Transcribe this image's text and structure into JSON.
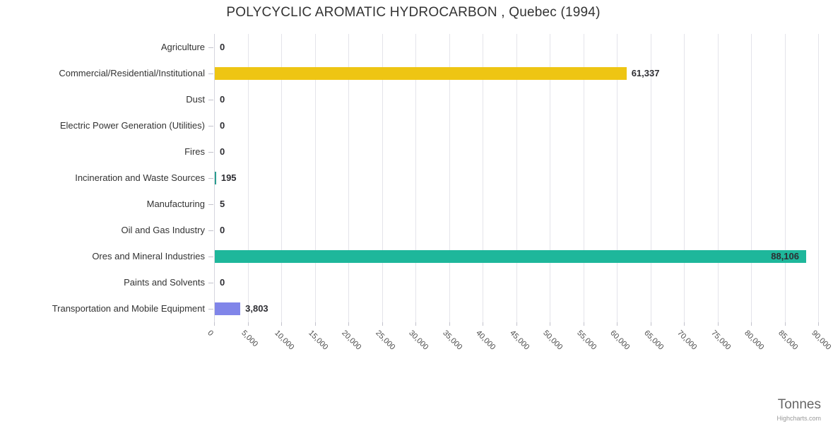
{
  "chart_data": {
    "type": "bar",
    "orientation": "horizontal",
    "title": "POLYCYCLIC AROMATIC HYDROCARBON , Quebec (1994)",
    "xlabel": "Tonnes",
    "credit": "Highcharts.com",
    "xlim": [
      0,
      90000
    ],
    "grid": true,
    "categories": [
      "Agriculture",
      "Commercial/Residential/Institutional",
      "Dust",
      "Electric Power Generation (Utilities)",
      "Fires",
      "Incineration and Waste Sources",
      "Manufacturing",
      "Oil and Gas Industry",
      "Ores and Mineral Industries",
      "Paints and Solvents",
      "Transportation and Mobile Equipment"
    ],
    "values": [
      0,
      61337,
      0,
      0,
      0,
      195,
      5,
      0,
      88106,
      0,
      3803
    ],
    "value_labels": [
      "0",
      "61,337",
      "0",
      "0",
      "0",
      "195",
      "5",
      "0",
      "88,106",
      "0",
      "3,803"
    ],
    "bar_colors": [
      null,
      "#eec513",
      null,
      null,
      null,
      "#2a9d90",
      null,
      null,
      "#1eb79b",
      null,
      "#8085e9"
    ],
    "x_ticks": [
      "0",
      "5,000",
      "10,000",
      "15,000",
      "20,000",
      "25,000",
      "30,000",
      "35,000",
      "40,000",
      "45,000",
      "50,000",
      "55,000",
      "60,000",
      "65,000",
      "70,000",
      "75,000",
      "80,000",
      "85,000",
      "90,000"
    ]
  },
  "colors": {
    "title": "#333333",
    "category_label": "#333333",
    "data_label": "#2e2e33",
    "gridline": "#e4e4ea",
    "axis_line": "#d6d6de",
    "tick": "#c2c2cc",
    "axis_title": "#666666",
    "credit": "#999999"
  }
}
